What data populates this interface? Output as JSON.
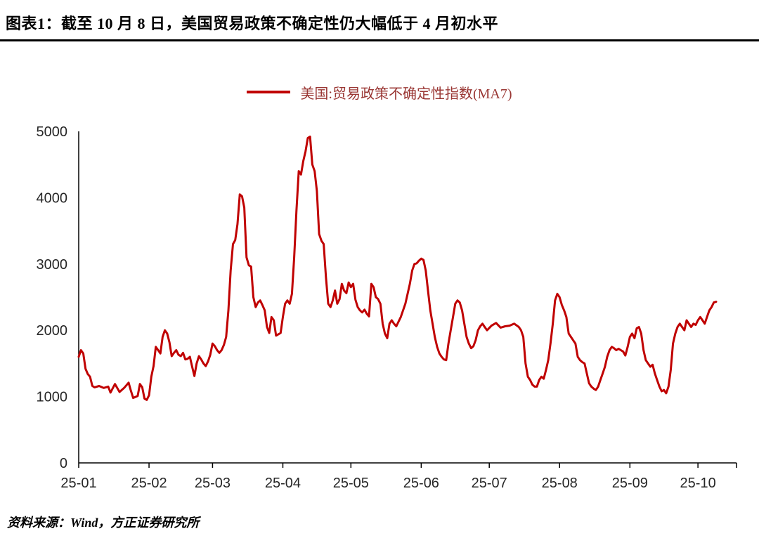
{
  "page": {
    "title": "图表1：截至 10 月 8 日，美国贸易政策不确定性仍大幅低于 4 月初水平",
    "source": "资料来源：Wind，方正证券研究所"
  },
  "legend": {
    "label": "美国:贸易政策不确定性指数(MA7)"
  },
  "colors": {
    "line": "#C00000",
    "legend_text": "#9A3734",
    "axis": "#000000",
    "tick_text": "#262626"
  },
  "chart_data": {
    "type": "line",
    "title": "截至10月8日，美国贸易政策不确定性仍大幅低于4月初水平",
    "xlabel": "",
    "ylabel": "",
    "grid": false,
    "legend_position": "top-center",
    "ylim": [
      0,
      5000
    ],
    "y_ticks": [
      0,
      1000,
      2000,
      3000,
      4000,
      5000
    ],
    "x_range": [
      0,
      290
    ],
    "x_unit": "days since 2025-01-01",
    "x_ticks": [
      {
        "pos": 0,
        "label": "25-01"
      },
      {
        "pos": 31,
        "label": "25-02"
      },
      {
        "pos": 59,
        "label": "25-03"
      },
      {
        "pos": 90,
        "label": "25-04"
      },
      {
        "pos": 120,
        "label": "25-05"
      },
      {
        "pos": 151,
        "label": "25-06"
      },
      {
        "pos": 181,
        "label": "25-07"
      },
      {
        "pos": 212,
        "label": "25-08"
      },
      {
        "pos": 243,
        "label": "25-09"
      },
      {
        "pos": 273,
        "label": "25-10"
      }
    ],
    "series": [
      {
        "name": "美国:贸易政策不确定性指数(MA7)",
        "color": "#C00000",
        "points": [
          [
            0,
            1600
          ],
          [
            1,
            1700
          ],
          [
            2,
            1650
          ],
          [
            3,
            1420
          ],
          [
            4,
            1340
          ],
          [
            5,
            1300
          ],
          [
            6,
            1160
          ],
          [
            7,
            1140
          ],
          [
            9,
            1160
          ],
          [
            11,
            1130
          ],
          [
            13,
            1150
          ],
          [
            14,
            1060
          ],
          [
            16,
            1190
          ],
          [
            18,
            1070
          ],
          [
            20,
            1130
          ],
          [
            22,
            1210
          ],
          [
            23,
            1090
          ],
          [
            24,
            980
          ],
          [
            26,
            1010
          ],
          [
            27,
            1190
          ],
          [
            28,
            1140
          ],
          [
            29,
            970
          ],
          [
            30,
            950
          ],
          [
            31,
            1020
          ],
          [
            32,
            1300
          ],
          [
            33,
            1460
          ],
          [
            34,
            1750
          ],
          [
            35,
            1700
          ],
          [
            36,
            1650
          ],
          [
            37,
            1900
          ],
          [
            38,
            2000
          ],
          [
            39,
            1950
          ],
          [
            40,
            1820
          ],
          [
            41,
            1610
          ],
          [
            42,
            1660
          ],
          [
            43,
            1700
          ],
          [
            44,
            1630
          ],
          [
            45,
            1610
          ],
          [
            46,
            1660
          ],
          [
            47,
            1560
          ],
          [
            48,
            1570
          ],
          [
            49,
            1600
          ],
          [
            50,
            1450
          ],
          [
            51,
            1310
          ],
          [
            52,
            1500
          ],
          [
            53,
            1610
          ],
          [
            54,
            1560
          ],
          [
            55,
            1500
          ],
          [
            56,
            1460
          ],
          [
            57,
            1530
          ],
          [
            58,
            1630
          ],
          [
            59,
            1800
          ],
          [
            60,
            1760
          ],
          [
            61,
            1700
          ],
          [
            62,
            1660
          ],
          [
            63,
            1700
          ],
          [
            64,
            1780
          ],
          [
            65,
            1900
          ],
          [
            66,
            2300
          ],
          [
            67,
            2900
          ],
          [
            68,
            3300
          ],
          [
            69,
            3360
          ],
          [
            70,
            3600
          ],
          [
            71,
            4050
          ],
          [
            72,
            4020
          ],
          [
            73,
            3850
          ],
          [
            74,
            3100
          ],
          [
            75,
            2980
          ],
          [
            76,
            2960
          ],
          [
            77,
            2500
          ],
          [
            78,
            2350
          ],
          [
            79,
            2420
          ],
          [
            80,
            2450
          ],
          [
            81,
            2380
          ],
          [
            82,
            2300
          ],
          [
            83,
            2050
          ],
          [
            84,
            1960
          ],
          [
            85,
            2200
          ],
          [
            86,
            2150
          ],
          [
            87,
            1920
          ],
          [
            88,
            1940
          ],
          [
            89,
            1960
          ],
          [
            90,
            2200
          ],
          [
            91,
            2400
          ],
          [
            92,
            2450
          ],
          [
            93,
            2400
          ],
          [
            94,
            2550
          ],
          [
            95,
            3100
          ],
          [
            96,
            3800
          ],
          [
            97,
            4400
          ],
          [
            98,
            4350
          ],
          [
            99,
            4550
          ],
          [
            100,
            4700
          ],
          [
            101,
            4900
          ],
          [
            102,
            4920
          ],
          [
            103,
            4500
          ],
          [
            104,
            4400
          ],
          [
            105,
            4100
          ],
          [
            106,
            3450
          ],
          [
            107,
            3350
          ],
          [
            108,
            3300
          ],
          [
            109,
            2800
          ],
          [
            110,
            2400
          ],
          [
            111,
            2350
          ],
          [
            112,
            2450
          ],
          [
            113,
            2600
          ],
          [
            114,
            2400
          ],
          [
            115,
            2470
          ],
          [
            116,
            2700
          ],
          [
            117,
            2600
          ],
          [
            118,
            2560
          ],
          [
            119,
            2720
          ],
          [
            120,
            2650
          ],
          [
            121,
            2700
          ],
          [
            122,
            2460
          ],
          [
            123,
            2350
          ],
          [
            124,
            2300
          ],
          [
            125,
            2270
          ],
          [
            126,
            2310
          ],
          [
            127,
            2250
          ],
          [
            128,
            2210
          ],
          [
            129,
            2700
          ],
          [
            130,
            2650
          ],
          [
            131,
            2500
          ],
          [
            132,
            2470
          ],
          [
            133,
            2400
          ],
          [
            134,
            2100
          ],
          [
            135,
            1950
          ],
          [
            136,
            1880
          ],
          [
            137,
            2100
          ],
          [
            138,
            2150
          ],
          [
            139,
            2100
          ],
          [
            140,
            2060
          ],
          [
            142,
            2200
          ],
          [
            144,
            2400
          ],
          [
            146,
            2700
          ],
          [
            147,
            2900
          ],
          [
            148,
            3000
          ],
          [
            149,
            3010
          ],
          [
            150,
            3050
          ],
          [
            151,
            3080
          ],
          [
            152,
            3060
          ],
          [
            153,
            2900
          ],
          [
            154,
            2600
          ],
          [
            155,
            2300
          ],
          [
            156,
            2100
          ],
          [
            157,
            1900
          ],
          [
            158,
            1750
          ],
          [
            159,
            1650
          ],
          [
            160,
            1600
          ],
          [
            161,
            1560
          ],
          [
            162,
            1550
          ],
          [
            163,
            1800
          ],
          [
            164,
            2000
          ],
          [
            165,
            2200
          ],
          [
            166,
            2400
          ],
          [
            167,
            2450
          ],
          [
            168,
            2420
          ],
          [
            169,
            2300
          ],
          [
            170,
            2100
          ],
          [
            171,
            1900
          ],
          [
            172,
            1800
          ],
          [
            173,
            1730
          ],
          [
            174,
            1760
          ],
          [
            175,
            1850
          ],
          [
            176,
            2000
          ],
          [
            177,
            2060
          ],
          [
            178,
            2100
          ],
          [
            179,
            2050
          ],
          [
            180,
            2000
          ],
          [
            182,
            2070
          ],
          [
            184,
            2110
          ],
          [
            186,
            2040
          ],
          [
            188,
            2060
          ],
          [
            190,
            2070
          ],
          [
            192,
            2100
          ],
          [
            194,
            2050
          ],
          [
            195,
            2000
          ],
          [
            196,
            1900
          ],
          [
            197,
            1500
          ],
          [
            198,
            1300
          ],
          [
            199,
            1250
          ],
          [
            200,
            1180
          ],
          [
            201,
            1150
          ],
          [
            202,
            1150
          ],
          [
            203,
            1250
          ],
          [
            204,
            1300
          ],
          [
            205,
            1270
          ],
          [
            206,
            1400
          ],
          [
            207,
            1550
          ],
          [
            208,
            1800
          ],
          [
            209,
            2100
          ],
          [
            210,
            2450
          ],
          [
            211,
            2550
          ],
          [
            212,
            2500
          ],
          [
            213,
            2380
          ],
          [
            214,
            2300
          ],
          [
            215,
            2200
          ],
          [
            216,
            1950
          ],
          [
            217,
            1900
          ],
          [
            218,
            1850
          ],
          [
            219,
            1800
          ],
          [
            220,
            1600
          ],
          [
            221,
            1550
          ],
          [
            222,
            1520
          ],
          [
            223,
            1500
          ],
          [
            224,
            1350
          ],
          [
            225,
            1200
          ],
          [
            226,
            1150
          ],
          [
            227,
            1120
          ],
          [
            228,
            1100
          ],
          [
            229,
            1150
          ],
          [
            230,
            1250
          ],
          [
            231,
            1350
          ],
          [
            232,
            1450
          ],
          [
            233,
            1600
          ],
          [
            234,
            1700
          ],
          [
            235,
            1750
          ],
          [
            236,
            1730
          ],
          [
            237,
            1700
          ],
          [
            238,
            1720
          ],
          [
            239,
            1700
          ],
          [
            240,
            1680
          ],
          [
            241,
            1620
          ],
          [
            242,
            1750
          ],
          [
            243,
            1900
          ],
          [
            244,
            1950
          ],
          [
            245,
            1880
          ],
          [
            246,
            2030
          ],
          [
            247,
            2050
          ],
          [
            248,
            1950
          ],
          [
            249,
            1700
          ],
          [
            250,
            1550
          ],
          [
            251,
            1500
          ],
          [
            252,
            1450
          ],
          [
            253,
            1480
          ],
          [
            254,
            1350
          ],
          [
            255,
            1250
          ],
          [
            256,
            1150
          ],
          [
            257,
            1080
          ],
          [
            258,
            1100
          ],
          [
            259,
            1050
          ],
          [
            260,
            1150
          ],
          [
            261,
            1400
          ],
          [
            262,
            1800
          ],
          [
            263,
            1950
          ],
          [
            264,
            2050
          ],
          [
            265,
            2100
          ],
          [
            266,
            2050
          ],
          [
            267,
            2000
          ],
          [
            268,
            2150
          ],
          [
            269,
            2100
          ],
          [
            270,
            2050
          ],
          [
            271,
            2100
          ],
          [
            272,
            2080
          ],
          [
            273,
            2150
          ],
          [
            274,
            2200
          ],
          [
            275,
            2150
          ],
          [
            276,
            2100
          ],
          [
            277,
            2200
          ],
          [
            278,
            2300
          ],
          [
            279,
            2350
          ],
          [
            280,
            2420
          ],
          [
            281,
            2430
          ]
        ]
      }
    ]
  }
}
